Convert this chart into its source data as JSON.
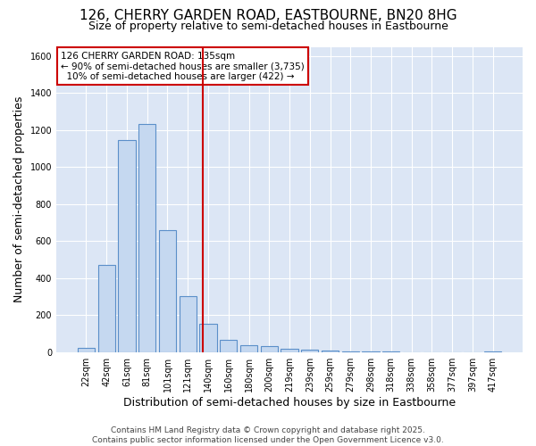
{
  "title_line1": "126, CHERRY GARDEN ROAD, EASTBOURNE, BN20 8HG",
  "title_line2": "Size of property relative to semi-detached houses in Eastbourne",
  "xlabel": "Distribution of semi-detached houses by size in Eastbourne",
  "ylabel": "Number of semi-detached properties",
  "categories": [
    "22sqm",
    "42sqm",
    "61sqm",
    "81sqm",
    "101sqm",
    "121sqm",
    "140sqm",
    "160sqm",
    "180sqm",
    "200sqm",
    "219sqm",
    "239sqm",
    "259sqm",
    "279sqm",
    "298sqm",
    "318sqm",
    "338sqm",
    "358sqm",
    "377sqm",
    "397sqm",
    "417sqm"
  ],
  "bar_heights": [
    25,
    470,
    1145,
    1235,
    660,
    300,
    155,
    65,
    38,
    30,
    20,
    12,
    8,
    5,
    3,
    2,
    1,
    1,
    1,
    1,
    2
  ],
  "bar_color": "#c5d8f0",
  "bar_edge_color": "#5b8fc9",
  "bg_color": "#dce6f5",
  "grid_color": "#ffffff",
  "vline_color": "#cc0000",
  "annotation_text": "126 CHERRY GARDEN ROAD: 135sqm\n← 90% of semi-detached houses are smaller (3,735)\n  10% of semi-detached houses are larger (422) →",
  "annotation_box_color": "#cc0000",
  "ylim": [
    0,
    1650
  ],
  "yticks": [
    0,
    200,
    400,
    600,
    800,
    1000,
    1200,
    1400,
    1600
  ],
  "footer_text": "Contains HM Land Registry data © Crown copyright and database right 2025.\nContains public sector information licensed under the Open Government Licence v3.0.",
  "title_fontsize": 11,
  "subtitle_fontsize": 9,
  "axis_label_fontsize": 9,
  "tick_fontsize": 7,
  "annotation_fontsize": 7.5,
  "footer_fontsize": 6.5
}
